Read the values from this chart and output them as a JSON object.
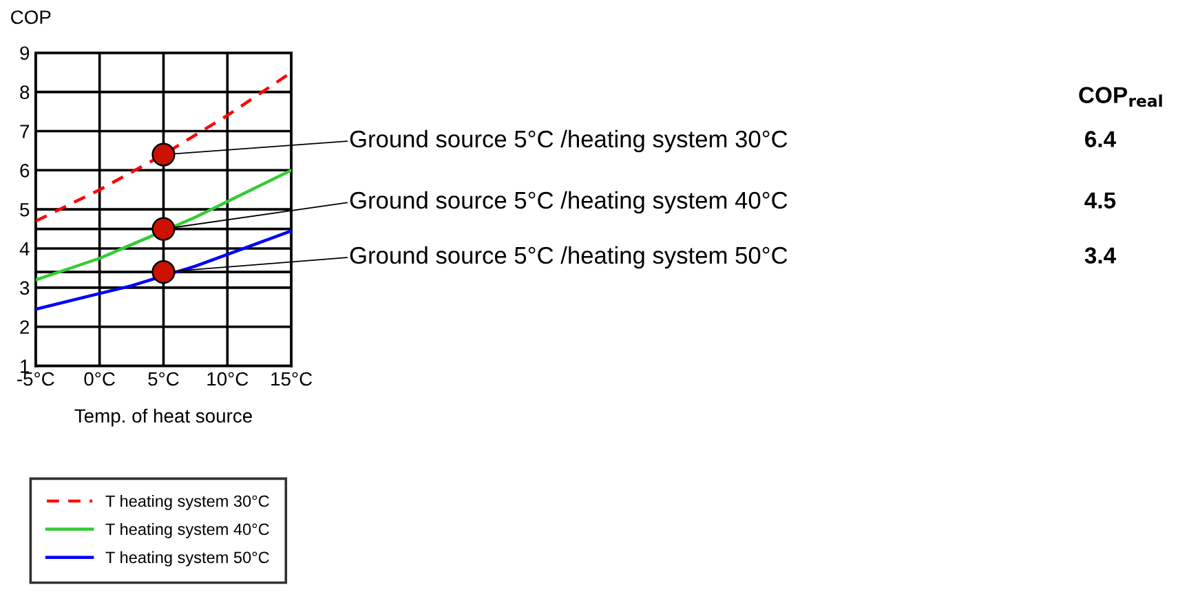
{
  "chart_data": {
    "type": "line",
    "ylabel": "COP",
    "xlabel": "Temp. of heat source",
    "x": [
      -5,
      0,
      5,
      10,
      15
    ],
    "series": [
      {
        "name": "T heating system 30°C",
        "color": "#ff0000",
        "line_style": "dashed",
        "values": [
          4.7,
          5.5,
          6.4,
          7.4,
          8.5
        ]
      },
      {
        "name": "T heating system 40°C",
        "color": "#33cc33",
        "x": [
          -5,
          0,
          2.5,
          7.5,
          10,
          15
        ],
        "values": [
          3.2,
          3.75,
          4.1,
          4.8,
          5.2,
          6.0
        ]
      },
      {
        "name": "T heating system 50°C",
        "color": "#0000ff",
        "x": [
          -5,
          0,
          2.5,
          7.5,
          10,
          15
        ],
        "values": [
          2.45,
          2.85,
          3.05,
          3.55,
          3.85,
          4.45
        ]
      },
      {
        "type": "scatter",
        "x": [
          5,
          5,
          5
        ],
        "color": "#cc1100",
        "marker": "circle",
        "values": [
          6.4,
          4.5,
          3.4
        ]
      }
    ],
    "xlim": [
      -5,
      15
    ],
    "ylim": [
      1,
      9
    ],
    "xticks": [
      {
        "value": -5,
        "label": "-5°C"
      },
      {
        "value": 0,
        "label": "0°C"
      },
      {
        "value": 5,
        "label": "5°C"
      },
      {
        "value": 10,
        "label": "10°C"
      },
      {
        "value": 15,
        "label": "15°C"
      }
    ],
    "yticks": [
      1,
      2,
      3,
      4,
      5,
      6,
      7,
      8,
      9
    ],
    "grid": true,
    "ref_lines": [
      {
        "axis": "y",
        "value": 4.5,
        "color": "#000000"
      },
      {
        "axis": "y",
        "value": 3.4,
        "color": "#000000"
      }
    ],
    "legend": "bottom left",
    "annotations": [
      "Ground source 5°C /heating system 30°C",
      "Ground source 5°C /heating system 40°C",
      "Ground source 5°C /heating system 50°C",
      "COP$_{real}$",
      "6.4",
      "4.5",
      "3.4"
    ]
  }
}
